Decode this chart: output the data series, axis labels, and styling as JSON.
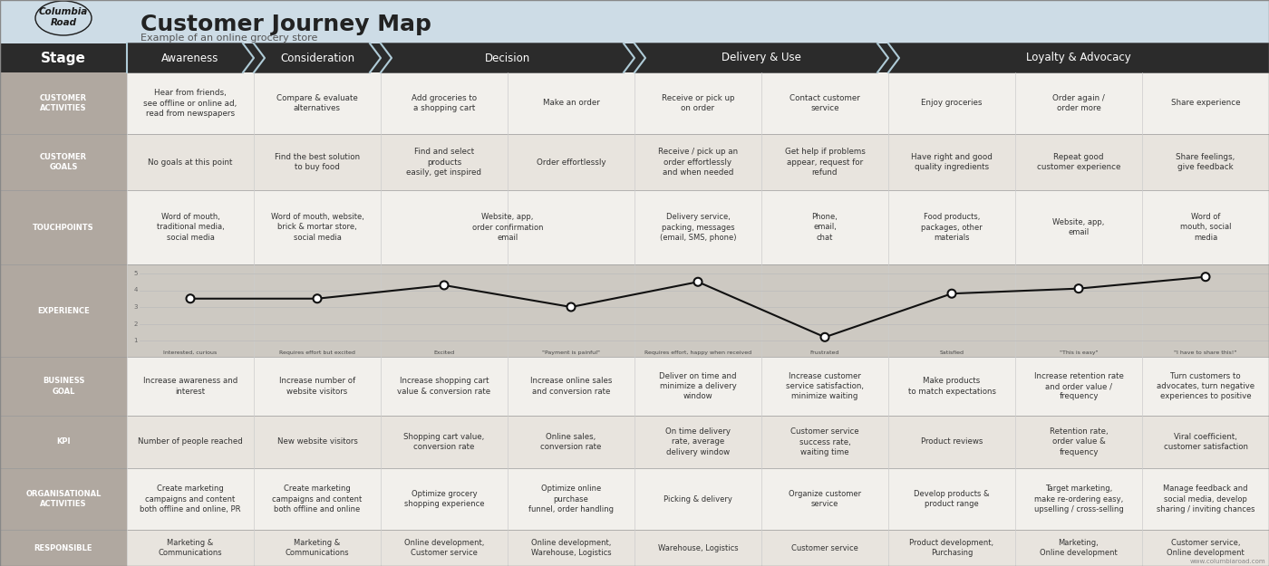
{
  "title": "Customer Journey Map",
  "subtitle": "Example of an online grocery store",
  "header_bg": "#cddce6",
  "stage_header_bg": "#2b2b2b",
  "stage_header_fg": "#ffffff",
  "row_label_bg": "#b0a8a0",
  "row_label_fg": "#ffffff",
  "row_bg_light": "#f2f0ec",
  "row_bg_alt": "#e8e4de",
  "experience_bg": "#cdc9c2",
  "grid_line": "#cccccc",
  "arrow_color": "#b0ccd8",
  "text_color": "#333333",
  "stages": [
    {
      "name": "Awareness",
      "span": 1
    },
    {
      "name": "Consideration",
      "span": 1
    },
    {
      "name": "Decision",
      "span": 2
    },
    {
      "name": "Delivery & Use",
      "span": 2
    },
    {
      "name": "Loyalty & Advocacy",
      "span": 3
    }
  ],
  "row_labels": [
    "CUSTOMER\nACTIVITIES",
    "CUSTOMER\nGOALS",
    "TOUCHPOINTS",
    "EXPERIENCE",
    "BUSINESS\nGOAL",
    "KPI",
    "ORGANISATIONAL\nACTIVITIES",
    "RESPONSIBLE"
  ],
  "customer_activities": [
    "Hear from friends,\nsee offline or online ad,\nread from newspapers",
    "Compare & evaluate\nalternatives",
    "Add groceries to\na shopping cart",
    "Make an order",
    "Receive or pick up\non order",
    "Contact customer\nservice",
    "Enjoy groceries",
    "Order again /\norder more",
    "Share experience"
  ],
  "customer_goals": [
    "No goals at this point",
    "Find the best solution\nto buy food",
    "Find and select\nproducts\neasily, get inspired",
    "Order effortlessly",
    "Receive / pick up an\norder effortlessly\nand when needed",
    "Get help if problems\nappear, request for\nrefund",
    "Have right and good\nquality ingredients",
    "Repeat good\ncustomer experience",
    "Share feelings,\ngive feedback"
  ],
  "touchpoints_spans": [
    1,
    1,
    2,
    1,
    1,
    1,
    1,
    1
  ],
  "touchpoints": [
    "Word of mouth,\ntraditional media,\nsocial media",
    "Word of mouth, website,\nbrick & mortar store,\nsocial media",
    "Website, app,\norder confirmation\nemail",
    "Delivery service,\npacking, messages\n(email, SMS, phone)",
    "Phone,\nemail,\nchat",
    "Food products,\npackages, other\nmaterials",
    "Website, app,\nemail",
    "Word of\nmouth, social\nmedia"
  ],
  "experience_scores": [
    3.5,
    3.5,
    4.3,
    3.0,
    4.5,
    1.2,
    3.8,
    4.1,
    4.8
  ],
  "experience_labels": [
    "Interested, curious",
    "Requires effort but excited",
    "Excited",
    "\"Payment is painful\"",
    "Requires effort, happy when received",
    "Frustrated",
    "Satisfied",
    "\"This is easy\"",
    "\"I have to share this!\""
  ],
  "business_goals": [
    "Increase awareness and\ninterest",
    "Increase number of\nwebsite visitors",
    "Increase shopping cart\nvalue & conversion rate",
    "Increase online sales\nand conversion rate",
    "Deliver on time and\nminimize a delivery\nwindow",
    "Increase customer\nservice satisfaction,\nminimize waiting",
    "Make products\nto match expectations",
    "Increase retention rate\nand order value /\nfrequency",
    "Turn customers to\nadvocates, turn negative\nexperiences to positive"
  ],
  "kpis": [
    "Number of people reached",
    "New website visitors",
    "Shopping cart value,\nconversion rate",
    "Online sales,\nconversion rate",
    "On time delivery\nrate, average\ndelivery window",
    "Customer service\nsuccess rate,\nwaiting time",
    "Product reviews",
    "Retention rate,\norder value &\nfrequency",
    "Viral coefficient,\ncustomer satisfaction"
  ],
  "org_activities": [
    "Create marketing\ncampaigns and content\nboth offline and online, PR",
    "Create marketing\ncampaigns and content\nboth offline and online",
    "Optimize grocery\nshopping experience",
    "Optimize online\npurchase\nfunnel, order handling",
    "Picking & delivery",
    "Organize customer\nservice",
    "Develop products &\nproduct range",
    "Target marketing,\nmake re-ordering easy,\nupselling / cross-selling",
    "Manage feedback and\nsocial media, develop\nsharing / inviting chances"
  ],
  "responsible": [
    "Marketing &\nCommunications",
    "Marketing &\nCommunications",
    "Online development,\nCustomer service",
    "Online development,\nWarehouse, Logistics",
    "Warehouse, Logistics",
    "Customer service",
    "Product development,\nPurchasing",
    "Marketing,\nOnline development",
    "Customer service,\nOnline development"
  ]
}
